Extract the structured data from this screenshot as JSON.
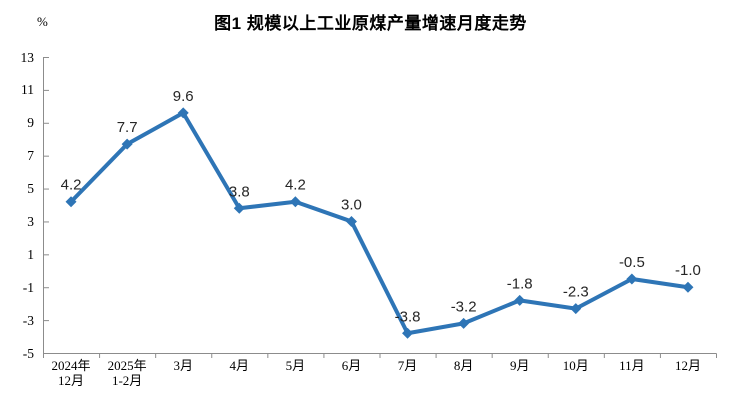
{
  "title": "图1 规模以上工业原煤产量增速月度走势",
  "unit_label": "%",
  "chart_data": {
    "type": "line",
    "title": "图1 规模以上工业原煤产量增速月度走势",
    "ylabel": "%",
    "categories": [
      [
        "2024年",
        "12月"
      ],
      [
        "2025年",
        "1-2月"
      ],
      [
        "3月"
      ],
      [
        "4月"
      ],
      [
        "5月"
      ],
      [
        "6月"
      ],
      [
        "7月"
      ],
      [
        "8月"
      ],
      [
        "9月"
      ],
      [
        "10月"
      ],
      [
        "11月"
      ],
      [
        "12月"
      ]
    ],
    "values": [
      4.2,
      7.7,
      9.6,
      3.8,
      4.2,
      3.0,
      -3.8,
      -3.2,
      -1.8,
      -2.3,
      -0.5,
      -1.0
    ],
    "point_labels": [
      "4.2",
      "7.7",
      "9.6",
      "3.8",
      "4.2",
      "3.0",
      "-3.8",
      "-3.2",
      "-1.8",
      "-2.3",
      "-0.5",
      "-1.0"
    ],
    "y_ticks": [
      13,
      11,
      9,
      7,
      5,
      3,
      1,
      -1,
      -3,
      -5
    ],
    "ylim": [
      -5,
      13
    ],
    "grid": false,
    "legend": "none",
    "line_color": "#2E75B6",
    "marker": "diamond",
    "axis_color": "#8C8C8C",
    "label_color": "#262626"
  }
}
